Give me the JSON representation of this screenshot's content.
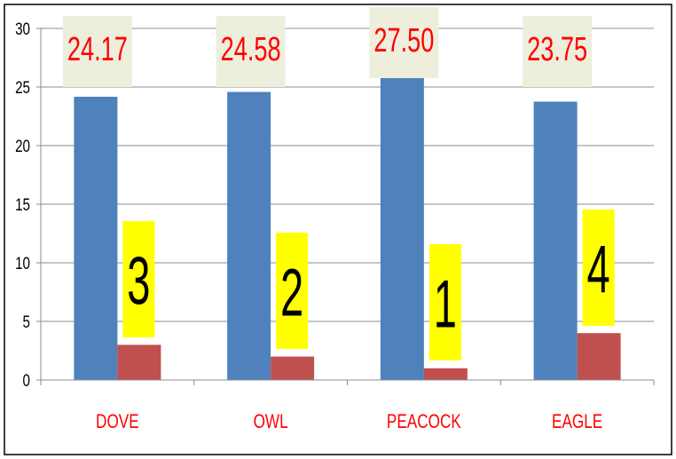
{
  "chart_data": {
    "type": "bar",
    "categories": [
      "DOVE",
      "OWL",
      "PEACOCK",
      "EAGLE"
    ],
    "series": [
      {
        "values": [
          24.17,
          24.58,
          27.5,
          23.75
        ],
        "color": "#4f81bd",
        "value_labels": [
          "24.17",
          "24.58",
          "27.50",
          "23.75"
        ]
      },
      {
        "values": [
          3,
          2,
          1,
          4
        ],
        "color": "#c0504d",
        "value_labels": [
          "3",
          "2",
          "1",
          "4"
        ]
      }
    ],
    "y_ticks": [
      "0",
      "5",
      "10",
      "15",
      "20",
      "25",
      "30"
    ],
    "ylim": [
      0,
      30
    ],
    "grid": true,
    "category_label_color": "#ff0000",
    "value_label_color_series1": "#ff0000",
    "value_label_bg_series1": "#eeeedd",
    "value_label_color_series2": "#000000",
    "value_label_bg_series2": "#ffff00"
  }
}
